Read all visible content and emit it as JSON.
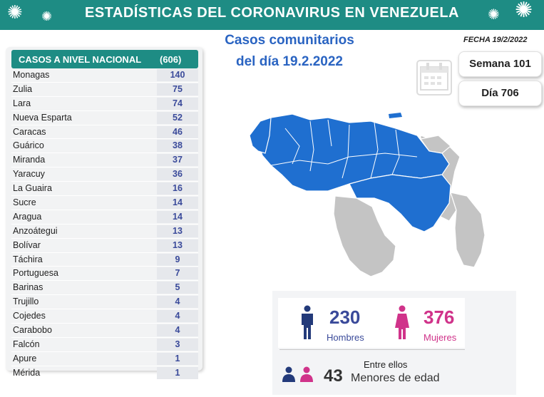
{
  "header": {
    "title": "ESTADÍSTICAS DEL CORONAVIRUS EN VENEZUELA"
  },
  "table": {
    "title": "CASOS A NIVEL NACIONAL",
    "total": "(606)",
    "rows": [
      {
        "state": "Monagas",
        "cases": "140"
      },
      {
        "state": "Zulia",
        "cases": "75"
      },
      {
        "state": "Lara",
        "cases": "74"
      },
      {
        "state": "Nueva Esparta",
        "cases": "52"
      },
      {
        "state": "Caracas",
        "cases": "46"
      },
      {
        "state": "Guárico",
        "cases": "38"
      },
      {
        "state": "Miranda",
        "cases": "37"
      },
      {
        "state": "Yaracuy",
        "cases": "36"
      },
      {
        "state": "La Guaira",
        "cases": "16"
      },
      {
        "state": "Sucre",
        "cases": "14"
      },
      {
        "state": "Aragua",
        "cases": "14"
      },
      {
        "state": "Anzoátegui",
        "cases": "13"
      },
      {
        "state": "Bolívar",
        "cases": "13"
      },
      {
        "state": "Táchira",
        "cases": "9"
      },
      {
        "state": "Portuguesa",
        "cases": "7"
      },
      {
        "state": "Barinas",
        "cases": "5"
      },
      {
        "state": "Trujillo",
        "cases": "4"
      },
      {
        "state": "Cojedes",
        "cases": "4"
      },
      {
        "state": "Carabobo",
        "cases": "4"
      },
      {
        "state": "Falcón",
        "cases": "3"
      },
      {
        "state": "Apure",
        "cases": "1"
      },
      {
        "state": "Mérida",
        "cases": "1"
      }
    ]
  },
  "subtitle": {
    "line1": "Casos comunitarios",
    "line2": "del día 19.2.2022"
  },
  "fecha": "FECHA 19/2/2022",
  "semana": "Semana 101",
  "dia": "Día 706",
  "stats": {
    "hombres_value": "230",
    "hombres_label": "Hombres",
    "mujeres_value": "376",
    "mujeres_label": "Mujeres",
    "entre_ellos": "Entre ellos",
    "menores_value": "43",
    "menores_label": "Menores de edad"
  },
  "colors": {
    "teal": "#1e8c84",
    "blue": "#2a64c2",
    "map_blue": "#1f6fd0",
    "map_grey": "#c4c4c4",
    "pink": "#d0338a",
    "navy": "#233a7a"
  },
  "icons": [
    "virus-icon",
    "calendar-icon",
    "man-icon",
    "woman-icon",
    "children-icon"
  ]
}
